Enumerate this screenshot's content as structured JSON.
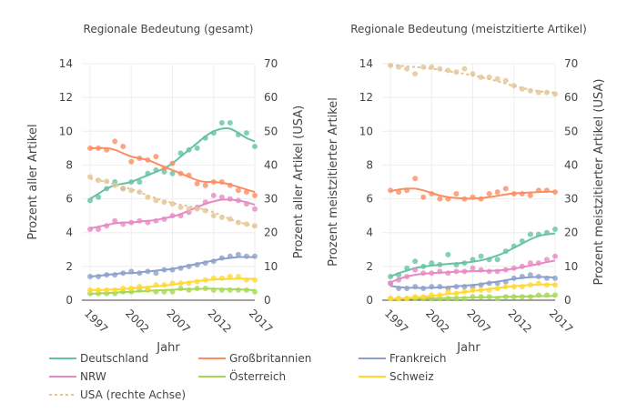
{
  "figure": {
    "xlabel": "Jahr"
  },
  "legend": [
    {
      "name": "Deutschland",
      "color": "#66c2a5",
      "dash": false
    },
    {
      "name": "Großbritannien",
      "color": "#fc8d62",
      "dash": false
    },
    {
      "name": "Frankreich",
      "color": "#8da0cb",
      "dash": false
    },
    {
      "name": "NRW",
      "color": "#e78ac3",
      "dash": false
    },
    {
      "name": "Österreich",
      "color": "#a6d854",
      "dash": false
    },
    {
      "name": "Schweiz",
      "color": "#ffd92f",
      "dash": false
    },
    {
      "name": "USA (rechte Achse)",
      "color": "#e5c494",
      "dash": true
    }
  ],
  "chart_data": [
    {
      "type": "line",
      "title": "Regionale Bedeutung (gesamt)",
      "xlabel": "Jahr",
      "ylabel": "Prozent aller Artikel",
      "y2label": "Prozent aller Artikel (USA)",
      "xticks": [
        1997,
        2002,
        2007,
        2012,
        2017
      ],
      "xlim": [
        1996,
        2017
      ],
      "ylim": [
        0,
        14
      ],
      "y2lim": [
        0,
        70
      ],
      "yticks": [
        0,
        2,
        4,
        6,
        8,
        10,
        12,
        14
      ],
      "y2ticks": [
        0,
        10,
        20,
        30,
        40,
        50,
        60,
        70
      ],
      "x": [
        1997,
        1998,
        1999,
        2000,
        2001,
        2002,
        2003,
        2004,
        2005,
        2006,
        2007,
        2008,
        2009,
        2010,
        2011,
        2012,
        2013,
        2014,
        2015,
        2016,
        2017
      ],
      "series": [
        {
          "name": "Deutschland",
          "axis": "left",
          "points": [
            5.9,
            6.1,
            6.6,
            7.0,
            6.6,
            7.0,
            7.0,
            7.5,
            7.7,
            7.6,
            7.5,
            8.7,
            8.9,
            9.0,
            9.6,
            9.9,
            10.5,
            10.5,
            9.8,
            9.9,
            9.1
          ],
          "trend": [
            6.0,
            6.3,
            6.6,
            6.8,
            6.9,
            7.0,
            7.2,
            7.4,
            7.6,
            7.8,
            8.1,
            8.5,
            8.9,
            9.3,
            9.7,
            10.0,
            10.15,
            10.15,
            9.9,
            9.6,
            9.4
          ]
        },
        {
          "name": "Großbritannien",
          "axis": "left",
          "points": [
            9.0,
            9.0,
            8.9,
            9.4,
            9.1,
            8.2,
            8.4,
            8.3,
            8.5,
            7.8,
            8.1,
            7.5,
            7.4,
            6.9,
            6.8,
            7.0,
            7.0,
            6.8,
            6.5,
            6.4,
            6.2
          ],
          "trend": [
            9.0,
            9.0,
            9.0,
            8.9,
            8.7,
            8.5,
            8.4,
            8.3,
            8.1,
            7.9,
            7.7,
            7.5,
            7.3,
            7.1,
            7.0,
            7.0,
            6.95,
            6.85,
            6.7,
            6.55,
            6.4
          ]
        },
        {
          "name": "Frankreich",
          "axis": "left",
          "points": [
            1.4,
            1.4,
            1.5,
            1.5,
            1.6,
            1.7,
            1.6,
            1.7,
            1.6,
            1.8,
            1.8,
            1.9,
            2.0,
            2.1,
            2.2,
            2.3,
            2.5,
            2.6,
            2.7,
            2.6,
            2.6
          ],
          "trend": [
            1.4,
            1.45,
            1.5,
            1.55,
            1.6,
            1.6,
            1.65,
            1.7,
            1.75,
            1.8,
            1.85,
            1.95,
            2.05,
            2.15,
            2.25,
            2.35,
            2.45,
            2.5,
            2.55,
            2.55,
            2.55
          ]
        },
        {
          "name": "NRW",
          "axis": "left",
          "points": [
            4.2,
            4.2,
            4.4,
            4.7,
            4.5,
            4.6,
            4.7,
            4.6,
            4.7,
            4.8,
            5.0,
            5.0,
            5.2,
            5.5,
            5.8,
            6.2,
            6.1,
            6.0,
            5.9,
            5.7,
            5.4
          ],
          "trend": [
            4.25,
            4.35,
            4.45,
            4.55,
            4.6,
            4.6,
            4.65,
            4.7,
            4.75,
            4.85,
            4.95,
            5.1,
            5.3,
            5.5,
            5.7,
            5.85,
            5.95,
            5.95,
            5.9,
            5.8,
            5.65
          ]
        },
        {
          "name": "Österreich",
          "axis": "left",
          "points": [
            0.4,
            0.4,
            0.4,
            0.4,
            0.5,
            0.5,
            0.6,
            0.6,
            0.5,
            0.5,
            0.5,
            0.7,
            0.6,
            0.7,
            0.7,
            0.6,
            0.6,
            0.6,
            0.6,
            0.6,
            0.5
          ],
          "trend": [
            0.38,
            0.4,
            0.42,
            0.45,
            0.48,
            0.5,
            0.52,
            0.55,
            0.58,
            0.6,
            0.62,
            0.64,
            0.66,
            0.67,
            0.68,
            0.68,
            0.67,
            0.66,
            0.64,
            0.62,
            0.6
          ]
        },
        {
          "name": "Schweiz",
          "axis": "left",
          "points": [
            0.6,
            0.6,
            0.6,
            0.6,
            0.7,
            0.7,
            0.8,
            0.7,
            0.9,
            0.9,
            1.0,
            1.0,
            1.0,
            1.1,
            1.2,
            1.3,
            1.3,
            1.4,
            1.4,
            1.2,
            1.2
          ],
          "trend": [
            0.6,
            0.6,
            0.62,
            0.64,
            0.66,
            0.7,
            0.74,
            0.78,
            0.82,
            0.86,
            0.92,
            1.0,
            1.07,
            1.13,
            1.18,
            1.22,
            1.25,
            1.26,
            1.27,
            1.27,
            1.26
          ]
        },
        {
          "name": "USA (rechte Achse)",
          "axis": "right",
          "dash": true,
          "points": [
            36.5,
            35.5,
            35.2,
            34.0,
            33.0,
            32.5,
            32.0,
            30.5,
            29.5,
            29.0,
            28.5,
            27.5,
            27.0,
            27.0,
            26.5,
            25.0,
            24.5,
            24.0,
            23.0,
            22.5,
            22.0
          ],
          "trend": [
            36.0,
            35.5,
            35.0,
            34.3,
            33.6,
            32.8,
            32.0,
            31.0,
            30.2,
            29.4,
            28.8,
            28.2,
            27.8,
            27.3,
            26.8,
            26.0,
            25.0,
            24.0,
            23.2,
            22.5,
            21.8
          ]
        }
      ]
    },
    {
      "type": "line",
      "title": "Regionale Bedeutung (meistzitierte Artikel)",
      "xlabel": "Jahr",
      "ylabel": "Prozent meistzitierter Artikel",
      "y2label": "Prozent meistzitierter Artikel (USA)",
      "xticks": [
        1997,
        2002,
        2007,
        2012,
        2017
      ],
      "xlim": [
        1996,
        2017
      ],
      "ylim": [
        0,
        14
      ],
      "y2lim": [
        0,
        70
      ],
      "yticks": [
        0,
        2,
        4,
        6,
        8,
        10,
        12,
        14
      ],
      "y2ticks": [
        0,
        10,
        20,
        30,
        40,
        50,
        60,
        70
      ],
      "x": [
        1997,
        1998,
        1999,
        2000,
        2001,
        2002,
        2003,
        2004,
        2005,
        2006,
        2007,
        2008,
        2009,
        2010,
        2011,
        2012,
        2013,
        2014,
        2015,
        2016,
        2017
      ],
      "series": [
        {
          "name": "Deutschland",
          "axis": "left",
          "points": [
            1.4,
            1.5,
            1.9,
            2.3,
            2.0,
            2.2,
            2.1,
            2.7,
            2.1,
            2.2,
            2.4,
            2.6,
            2.4,
            2.4,
            2.9,
            3.2,
            3.5,
            3.9,
            3.9,
            4.0,
            4.2
          ],
          "trend": [
            1.4,
            1.6,
            1.75,
            1.9,
            1.98,
            2.05,
            2.1,
            2.15,
            2.18,
            2.22,
            2.28,
            2.36,
            2.48,
            2.65,
            2.85,
            3.1,
            3.35,
            3.6,
            3.8,
            3.9,
            3.95
          ]
        },
        {
          "name": "Großbritannien",
          "axis": "left",
          "points": [
            6.5,
            6.4,
            6.5,
            7.2,
            6.1,
            6.3,
            6.0,
            6.0,
            6.3,
            6.0,
            6.1,
            6.0,
            6.3,
            6.4,
            6.6,
            6.3,
            6.3,
            6.2,
            6.5,
            6.5,
            6.4
          ],
          "trend": [
            6.45,
            6.55,
            6.6,
            6.6,
            6.5,
            6.35,
            6.2,
            6.1,
            6.05,
            6.02,
            6.02,
            6.04,
            6.1,
            6.18,
            6.26,
            6.32,
            6.35,
            6.38,
            6.4,
            6.42,
            6.42
          ]
        },
        {
          "name": "Frankreich",
          "axis": "left",
          "points": [
            1.0,
            0.7,
            0.7,
            0.8,
            0.7,
            0.8,
            0.8,
            0.7,
            0.8,
            0.8,
            0.8,
            0.9,
            1.0,
            1.0,
            1.1,
            1.3,
            1.4,
            1.5,
            1.4,
            1.3,
            1.3
          ],
          "trend": [
            0.85,
            0.78,
            0.74,
            0.73,
            0.73,
            0.74,
            0.76,
            0.78,
            0.82,
            0.86,
            0.9,
            0.96,
            1.03,
            1.1,
            1.18,
            1.26,
            1.32,
            1.36,
            1.38,
            1.37,
            1.35
          ]
        },
        {
          "name": "NRW",
          "axis": "left",
          "points": [
            1.0,
            1.2,
            1.4,
            1.8,
            1.6,
            1.6,
            1.7,
            1.6,
            1.7,
            1.7,
            1.9,
            1.8,
            1.7,
            1.7,
            1.8,
            1.9,
            2.0,
            2.2,
            2.2,
            2.4,
            2.6
          ],
          "trend": [
            1.05,
            1.25,
            1.4,
            1.5,
            1.56,
            1.6,
            1.63,
            1.66,
            1.68,
            1.7,
            1.72,
            1.73,
            1.74,
            1.76,
            1.8,
            1.87,
            1.95,
            2.05,
            2.15,
            2.25,
            2.35
          ]
        },
        {
          "name": "Österreich",
          "axis": "left",
          "points": [
            0.1,
            0.1,
            0.1,
            0.1,
            0.1,
            0.1,
            0.1,
            0.1,
            0.1,
            0.1,
            0.2,
            0.2,
            0.2,
            0.1,
            0.2,
            0.2,
            0.2,
            0.2,
            0.3,
            0.3,
            0.3
          ],
          "trend": [
            0.06,
            0.07,
            0.08,
            0.09,
            0.1,
            0.11,
            0.12,
            0.13,
            0.14,
            0.15,
            0.16,
            0.17,
            0.18,
            0.19,
            0.2,
            0.21,
            0.22,
            0.23,
            0.24,
            0.25,
            0.26
          ]
        },
        {
          "name": "Schweiz",
          "axis": "left",
          "points": [
            0.1,
            0.1,
            0.1,
            0.2,
            0.2,
            0.3,
            0.3,
            0.5,
            0.4,
            0.5,
            0.6,
            0.6,
            0.6,
            0.7,
            0.8,
            0.8,
            0.8,
            0.9,
            1.0,
            0.9,
            0.9
          ],
          "trend": [
            0.08,
            0.1,
            0.13,
            0.16,
            0.2,
            0.25,
            0.3,
            0.36,
            0.42,
            0.48,
            0.54,
            0.6,
            0.66,
            0.72,
            0.78,
            0.83,
            0.87,
            0.9,
            0.92,
            0.93,
            0.93
          ]
        },
        {
          "name": "USA (rechte Achse)",
          "axis": "right",
          "dash": true,
          "points": [
            69.5,
            69.0,
            68.5,
            67.0,
            69.0,
            69.0,
            68.5,
            68.0,
            67.5,
            68.5,
            67.0,
            66.0,
            66.0,
            65.5,
            65.0,
            63.5,
            62.5,
            62.0,
            61.5,
            61.5,
            61.0
          ],
          "trend": [
            69.5,
            69.4,
            69.2,
            69.0,
            68.8,
            68.5,
            68.2,
            67.8,
            67.4,
            67.0,
            66.5,
            66.0,
            65.4,
            64.8,
            64.1,
            63.4,
            62.8,
            62.3,
            61.9,
            61.6,
            61.4
          ]
        }
      ]
    }
  ]
}
